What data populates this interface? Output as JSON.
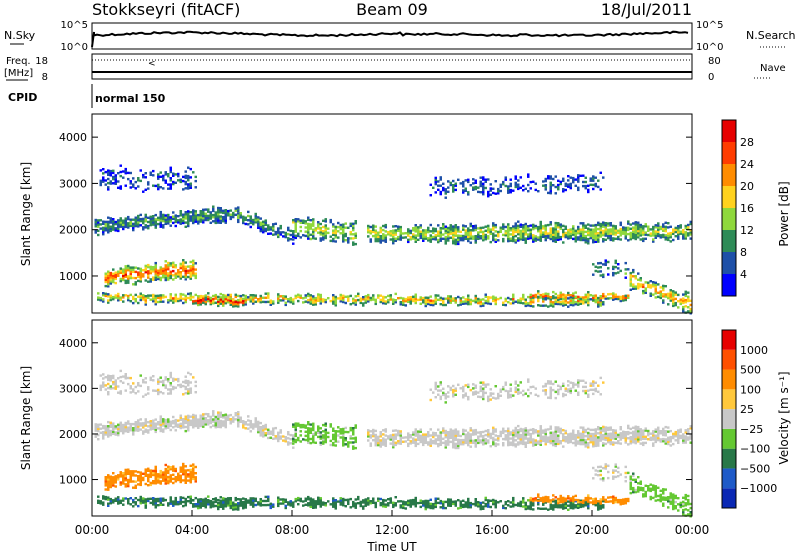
{
  "header": {
    "station": "Stokkseyri (fitACF)",
    "beam": "Beam 09",
    "date": "18/Jul/2011"
  },
  "top_panels": {
    "nsky_label": "N.Sky",
    "nsky_ticks": [
      "10^5",
      "10^0"
    ],
    "nsearch_label": "N.Search",
    "freq_label": "Freq.",
    "freq_unit": "[MHz]",
    "freq_ticks": [
      "18",
      "8"
    ],
    "nave_label": "Nave",
    "nave_ticks": [
      "80",
      "0"
    ],
    "cpid_label": "CPID",
    "cpid_value": "normal 150"
  },
  "chart_data": [
    {
      "type": "heatmap",
      "title": "",
      "xlabel": "",
      "ylabel": "Slant Range [km]",
      "y_ticks": [
        "1000",
        "2000",
        "3000",
        "4000"
      ],
      "ylim": [
        200,
        4500
      ],
      "colorbar_label": "Power [dB]",
      "colorbar_ticks": [
        "4",
        "8",
        "12",
        "16",
        "20",
        "24",
        "28"
      ],
      "colors": [
        "#0000ff",
        "#1e50a8",
        "#2e8b57",
        "#8fd83c",
        "#ffd21e",
        "#ff8c00",
        "#ff3c00",
        "#e60000"
      ]
    },
    {
      "type": "heatmap",
      "title": "",
      "xlabel": "Time UT",
      "ylabel": "Slant Range [km]",
      "y_ticks": [
        "1000",
        "2000",
        "3000",
        "4000"
      ],
      "x_ticks": [
        "00:00",
        "04:00",
        "08:00",
        "12:00",
        "16:00",
        "20:00",
        "00:00"
      ],
      "ylim": [
        200,
        4500
      ],
      "colorbar_label": "Velocity [m s⁻¹]",
      "colorbar_ticks": [
        "1000",
        "500",
        "100",
        "25",
        "−25",
        "−100",
        "−500",
        "−1000"
      ],
      "colors": [
        "#0a28b4",
        "#1e5ac8",
        "#287848",
        "#64c832",
        "#c8c8c8",
        "#ffc83c",
        "#ff8c00",
        "#ff5000",
        "#e60000"
      ]
    }
  ]
}
